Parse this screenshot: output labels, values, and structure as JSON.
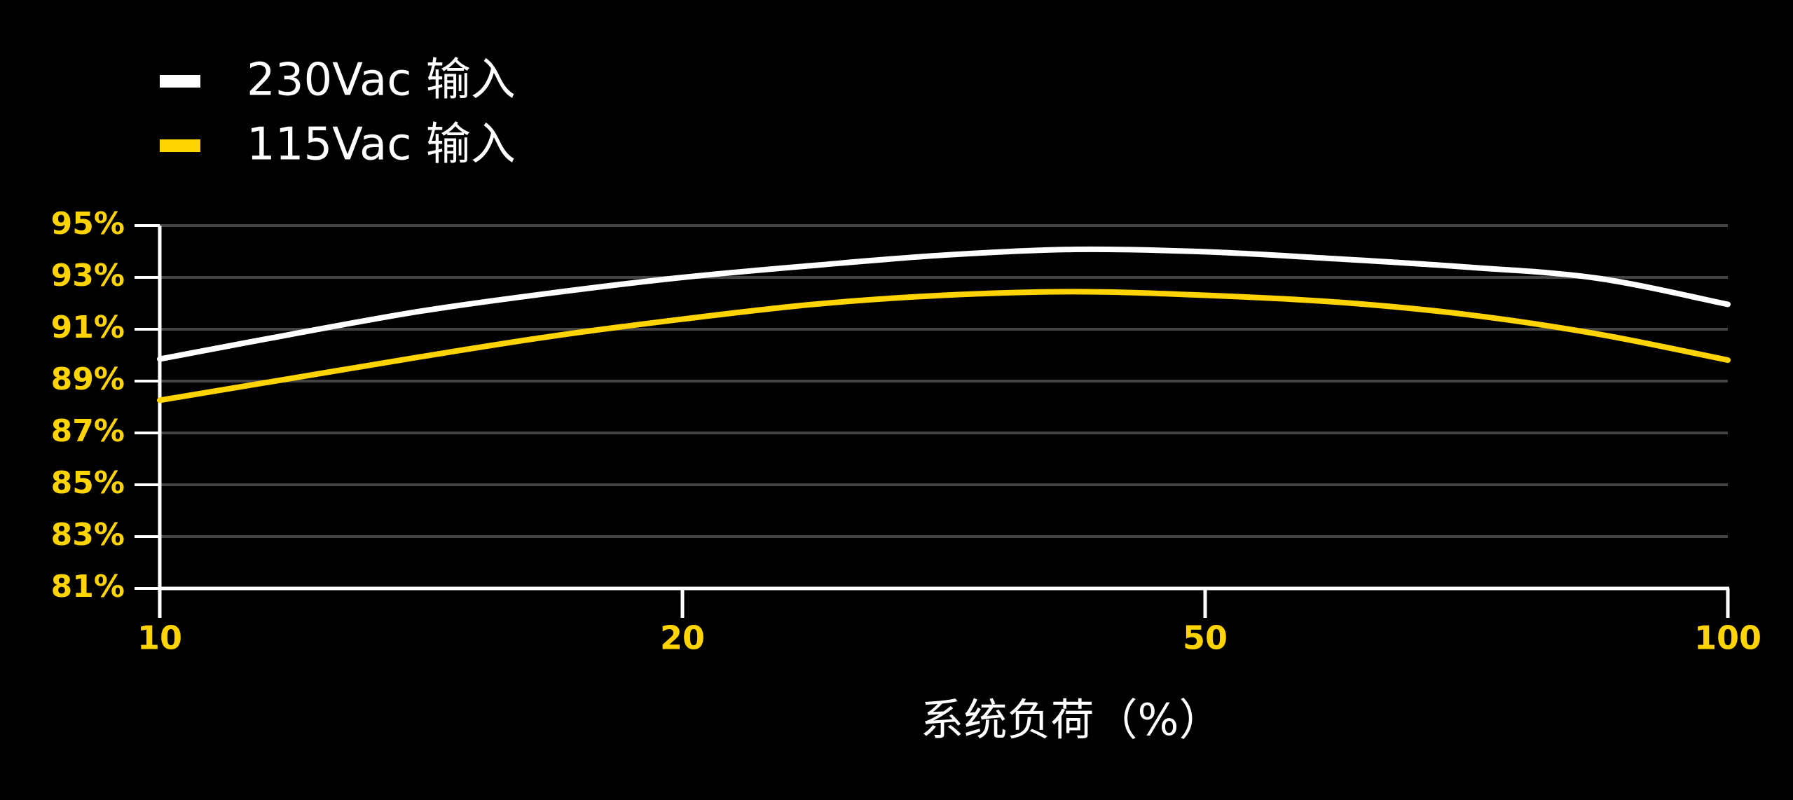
{
  "chart_data": {
    "type": "line",
    "x_label": "系统负荷（%）",
    "categories": [
      "10",
      null,
      null,
      null,
      "20",
      null,
      null,
      null,
      "50",
      null,
      null,
      null,
      "100"
    ],
    "series": [
      {
        "name": "230Vac 输入",
        "color": "#ffffff",
        "values": [
          89.85,
          90.8,
          91.7,
          92.4,
          93.0,
          93.46,
          93.86,
          94.08,
          93.99,
          93.72,
          93.4,
          92.97,
          91.96
        ]
      },
      {
        "name": "115Vac 输入",
        "color": "#ffd400",
        "values": [
          88.26,
          89.1,
          89.94,
          90.73,
          91.39,
          91.96,
          92.31,
          92.45,
          92.31,
          92.05,
          91.57,
          90.82,
          89.81
        ]
      }
    ],
    "ylim": [
      81,
      95
    ],
    "yticks": [
      {
        "value": 81,
        "label": "81%"
      },
      {
        "value": 83,
        "label": "83%"
      },
      {
        "value": 85,
        "label": "85%"
      },
      {
        "value": 87,
        "label": "87%"
      },
      {
        "value": 89,
        "label": "89%"
      },
      {
        "value": 91,
        "label": "91%"
      },
      {
        "value": 93,
        "label": "93%"
      },
      {
        "value": 95,
        "label": "95%"
      }
    ],
    "grid": true,
    "tick_color": "#ffd400"
  }
}
